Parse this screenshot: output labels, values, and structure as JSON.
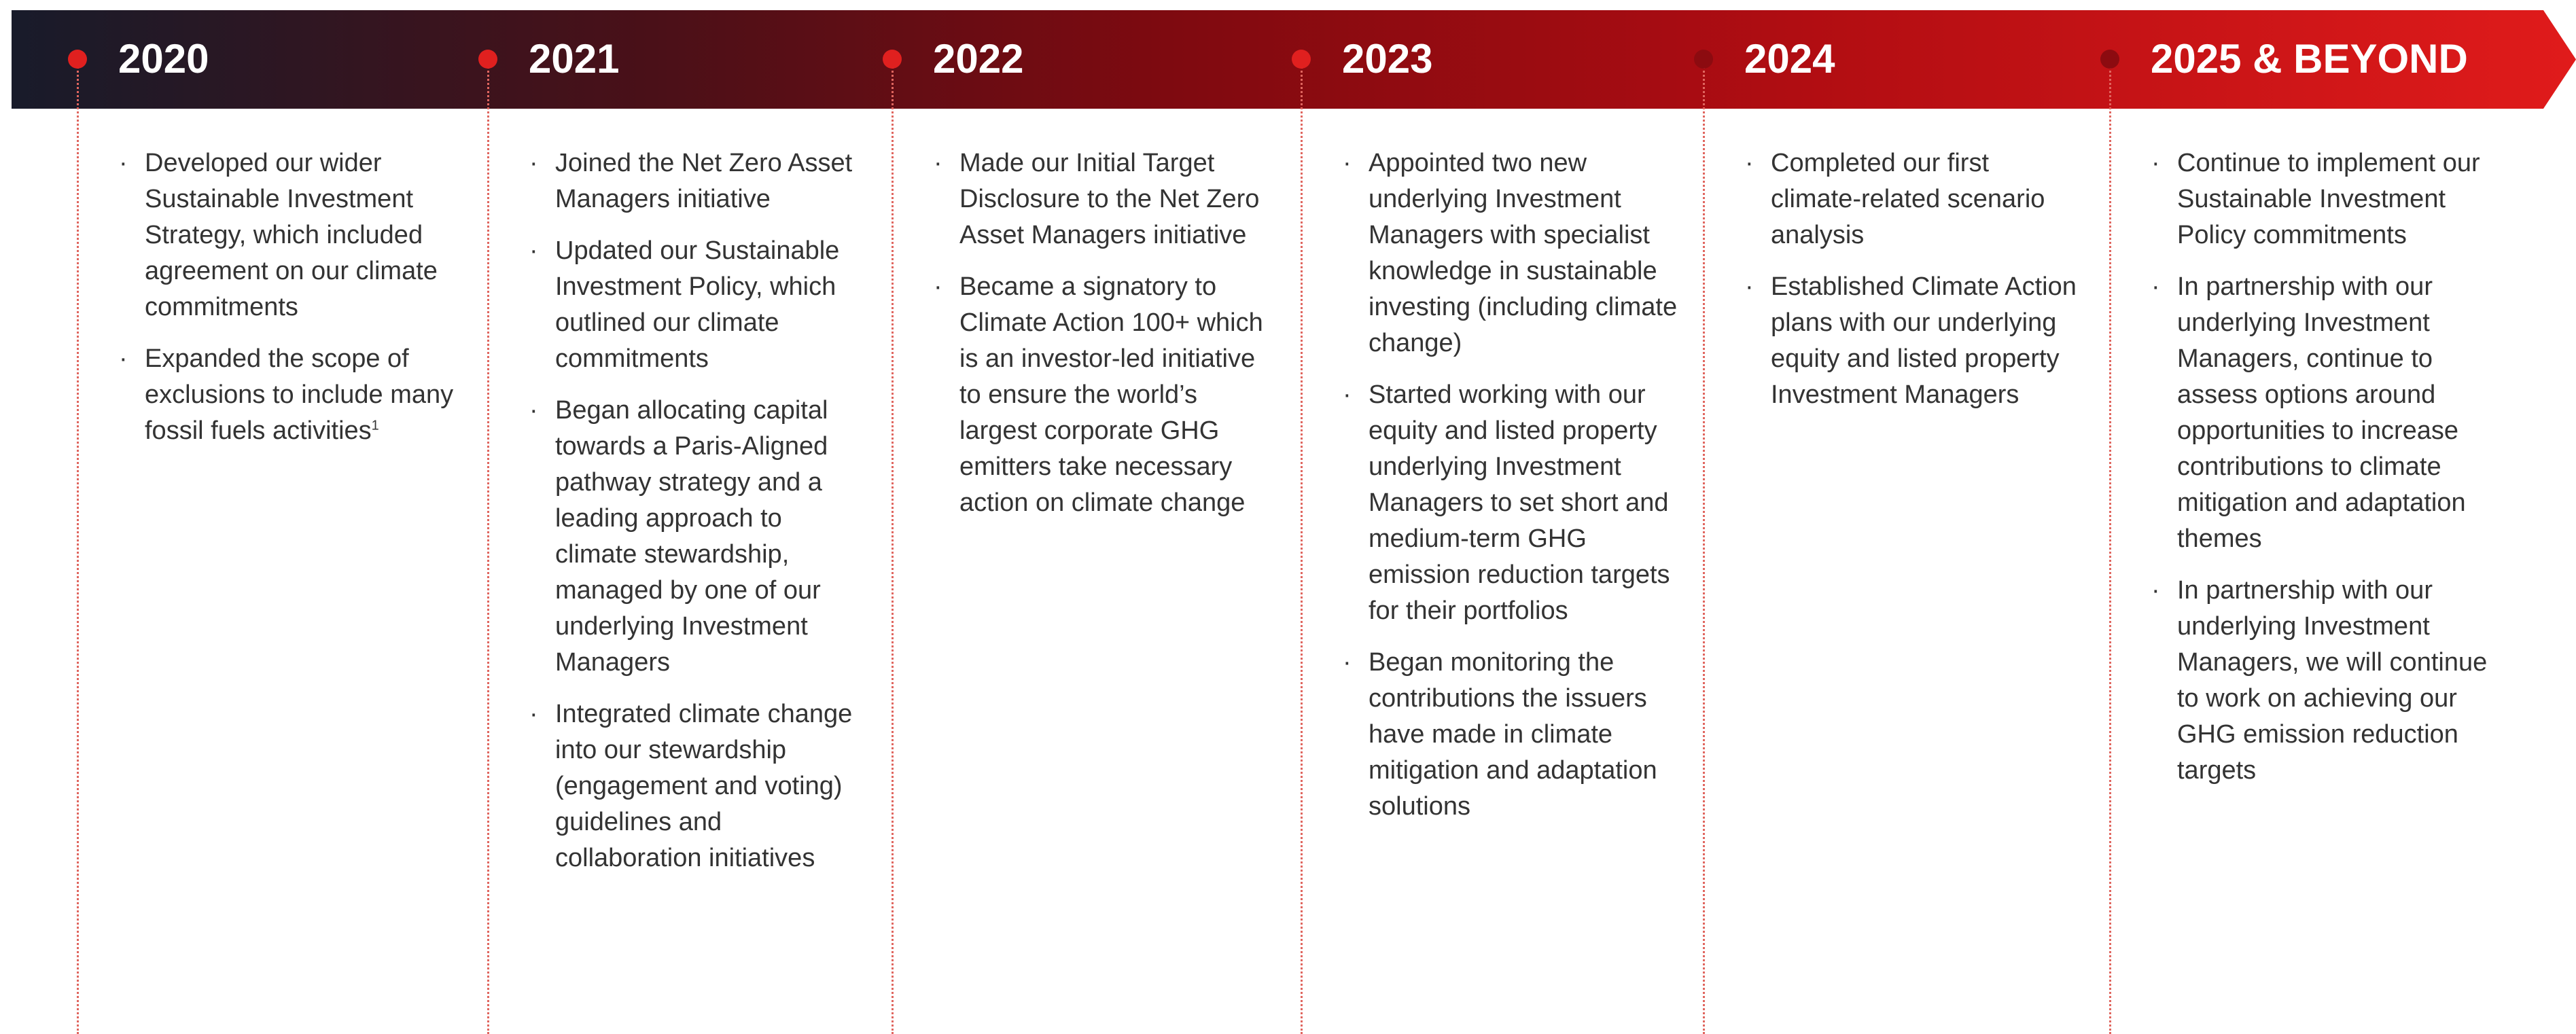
{
  "timeline": [
    {
      "year": "2020",
      "bullets": [
        {
          "text": "Developed our wider Sustainable Investment Strategy, which included agreement on our climate commitments"
        },
        {
          "text": "Expanded the scope of exclusions to include many fossil fuels activities",
          "sup": "1"
        }
      ]
    },
    {
      "year": "2021",
      "bullets": [
        {
          "text": "Joined the Net Zero Asset Managers initiative"
        },
        {
          "text": "Updated our Sustainable Investment Policy, which outlined our climate commitments"
        },
        {
          "text": "Began allocating capital towards a Paris-Aligned pathway strategy and a leading approach to climate stewardship, managed by one of our underlying Investment Managers"
        },
        {
          "text": "Integrated climate change into our stewardship (engagement and voting) guidelines and collaboration initiatives"
        }
      ]
    },
    {
      "year": "2022",
      "bullets": [
        {
          "text": "Made our Initial Target Disclosure to the Net Zero Asset Managers initiative"
        },
        {
          "text": "Became a signatory to Climate Action 100+ which is an investor-led initiative to ensure the world’s largest corporate GHG emitters take necessary action on climate change"
        }
      ]
    },
    {
      "year": "2023",
      "bullets": [
        {
          "text": "Appointed two new underlying Investment Managers with specialist knowledge in sustainable investing (including climate change)"
        },
        {
          "text": "Started working with our equity and listed property underlying Investment Managers to set short and medium-term GHG emission reduction targets for their portfolios"
        },
        {
          "text": "Began monitoring the contributions the issuers have made in climate mitigation and adaptation solutions"
        }
      ]
    },
    {
      "year": "2024",
      "bullets": [
        {
          "text": "Completed our first climate-related scenario analysis"
        },
        {
          "text": "Established Climate Action plans with our underlying equity and listed property Investment Managers"
        }
      ]
    },
    {
      "year": "2025 & BEYOND",
      "bullets": [
        {
          "text": "Continue to implement our Sustainable Investment Policy commitments"
        },
        {
          "text": "In partnership with our underlying Investment Managers, continue to assess options around opportunities to increase contributions to climate mitigation and adaptation themes"
        },
        {
          "text": "In partnership with our underlying Investment Managers, we will continue to work on achieving our GHG emission reduction targets"
        }
      ]
    }
  ]
}
